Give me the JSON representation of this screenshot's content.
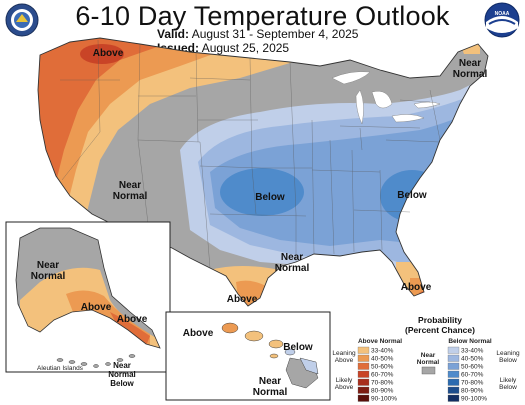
{
  "header": {
    "title": "6-10 Day Temperature Outlook",
    "valid_label": "Valid:",
    "valid_value": "August 31 - September 4, 2025",
    "issued_label": "Issued:",
    "issued_value": "August 25, 2025"
  },
  "logos": {
    "left": "doc-seal",
    "right": "noaa-logo",
    "right_text": "NOAA"
  },
  "map_labels": {
    "above_nw": "Above",
    "near_normal_ne_1": "Near",
    "near_normal_ne_2": "Normal",
    "near_normal_w_1": "Near",
    "near_normal_w_2": "Normal",
    "below_central": "Below",
    "below_se": "Below",
    "near_normal_s_1": "Near",
    "near_normal_s_2": "Normal",
    "above_tx": "Above",
    "above_fl": "Above"
  },
  "alaska_labels": {
    "near_normal_1": "Near",
    "near_normal_2": "Normal",
    "above_1": "Above",
    "above_2": "Above",
    "aleutian": "Aleutian Islands",
    "near_normal_below_1": "Near",
    "near_normal_below_2": "Normal",
    "near_normal_below_3": "Below"
  },
  "hawaii_labels": {
    "above": "Above",
    "below": "Below",
    "near_normal_1": "Near",
    "near_normal_2": "Normal"
  },
  "legend": {
    "title_1": "Probability",
    "title_2": "(Percent Chance)",
    "above_header": "Above Normal",
    "below_header": "Below Normal",
    "near_header_1": "Near",
    "near_header_2": "Normal",
    "leaning_above_1": "Leaning",
    "leaning_above_2": "Above",
    "likely_above_1": "Likely",
    "likely_above_2": "Above",
    "leaning_below_1": "Leaning",
    "leaning_below_2": "Below",
    "likely_below_1": "Likely",
    "likely_below_2": "Below",
    "above_bins": [
      "33-40%",
      "40-50%",
      "50-60%",
      "60-70%",
      "70-80%",
      "80-90%",
      "90-100%"
    ],
    "below_bins": [
      "33-40%",
      "40-50%",
      "50-60%",
      "60-70%",
      "70-80%",
      "80-90%",
      "90-100%"
    ],
    "above_colors": [
      "#f3c17c",
      "#ec9a52",
      "#e06d39",
      "#c94427",
      "#a82d1c",
      "#7d1c12",
      "#5a0f0a"
    ],
    "below_colors": [
      "#c0cfe9",
      "#9db7e0",
      "#7ba2d6",
      "#4f8bcb",
      "#2c6bb0",
      "#1d4d8c",
      "#132f63"
    ],
    "near_color": "#a6a6a6"
  }
}
